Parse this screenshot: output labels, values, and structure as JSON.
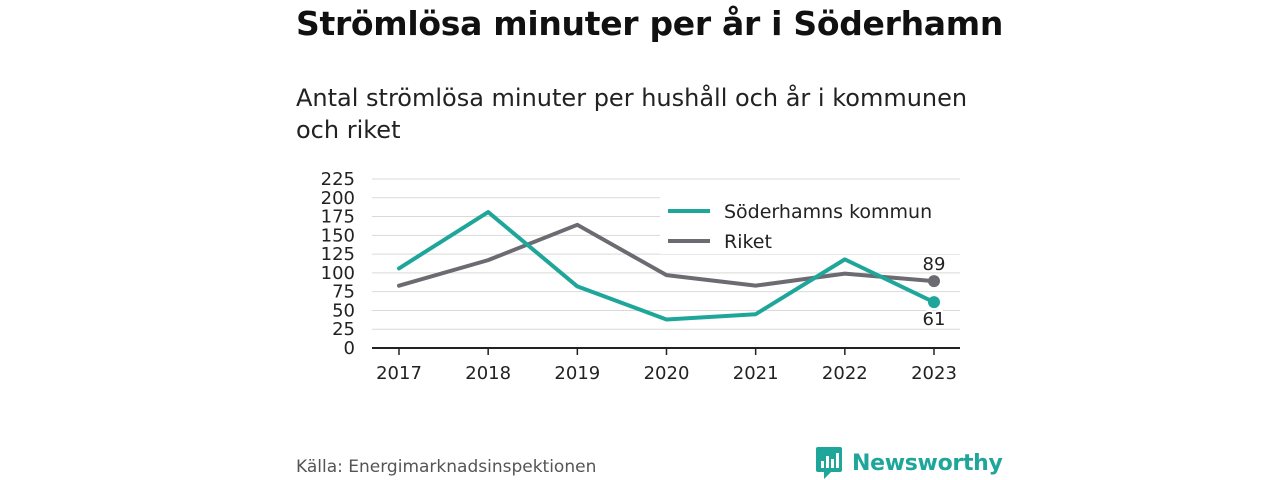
{
  "header": {
    "title": "Strömlösa minuter per år i Söderhamn",
    "subtitle": "Antal strömlösa minuter per hushåll och år i kommunen och riket"
  },
  "footer": {
    "source": "Källa: Energimarknadsinspektionen",
    "brand": "Newsworthy"
  },
  "colors": {
    "kommun": "#1fa69a",
    "riket": "#6d6b72",
    "grid": "#d9d9d9",
    "axis": "#222222"
  },
  "chart_data": {
    "type": "line",
    "title": "Strömlösa minuter per år i Söderhamn",
    "subtitle": "Antal strömlösa minuter per hushåll och år i kommunen och riket",
    "x": [
      "2017",
      "2018",
      "2019",
      "2020",
      "2021",
      "2022",
      "2023"
    ],
    "y_ticks": [
      "0",
      "25",
      "50",
      "75",
      "100",
      "125",
      "150",
      "175",
      "200",
      "225"
    ],
    "ylim": [
      0,
      225
    ],
    "grid": true,
    "legend": "top-right",
    "series": [
      {
        "name": "Söderhamns kommun",
        "values": [
          106,
          181,
          82,
          38,
          45,
          118,
          61
        ],
        "end_label": "61"
      },
      {
        "name": "Riket",
        "values": [
          83,
          117,
          164,
          97,
          83,
          99,
          89
        ],
        "end_label": "89"
      }
    ]
  }
}
